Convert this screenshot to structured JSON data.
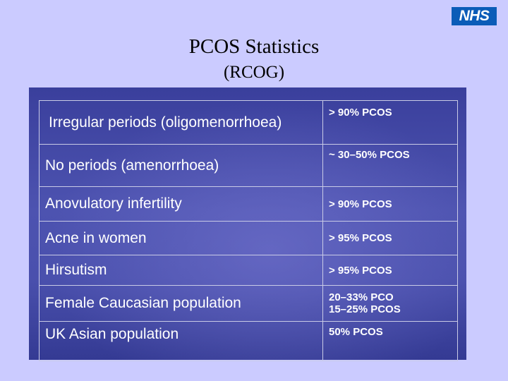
{
  "header": {
    "logo": "NHS",
    "title": "PCOS Statistics",
    "subtitle": "(RCOG)"
  },
  "table": {
    "rows": [
      {
        "condition": "Irregular periods (oligomenorrhoea)",
        "statistic": [
          "> 90%  PCOS"
        ]
      },
      {
        "condition": "No periods (amenorrhoea)",
        "statistic": [
          "~ 30–50% PCOS"
        ]
      },
      {
        "condition": "Anovulatory infertility",
        "statistic": [
          "> 90% PCOS"
        ]
      },
      {
        "condition": "Acne in women",
        "statistic": [
          "> 95% PCOS"
        ]
      },
      {
        "condition": "Hirsutism",
        "statistic": [
          "> 95% PCOS"
        ]
      },
      {
        "condition": "Female Caucasian population",
        "statistic": [
          "20–33% PCO",
          "15–25% PCOS"
        ]
      },
      {
        "condition": "UK  Asian population",
        "statistic": [
          "50% PCOS"
        ]
      }
    ]
  },
  "colors": {
    "background": "#cbcbff",
    "panel": "#4a50ad",
    "logo": "#0b5cb8"
  }
}
